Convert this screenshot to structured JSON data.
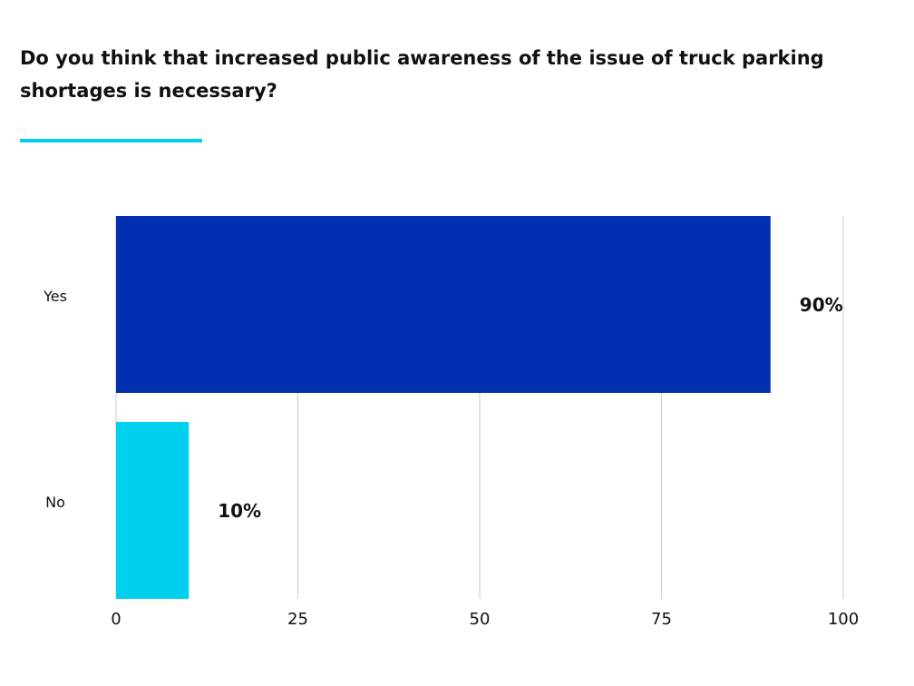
{
  "chart_data": {
    "type": "hbar",
    "title": "Do you think that increased public awareness of the issue of truck parking shortages is necessary?",
    "categories": [
      "Yes",
      "No"
    ],
    "values": [
      90,
      10
    ],
    "value_labels": [
      "90%",
      "10%"
    ],
    "colors": [
      "#0030b0",
      "#00cfee"
    ],
    "xlim": [
      0,
      100
    ],
    "xticks": [
      0,
      25,
      50,
      75,
      100
    ],
    "grid": true
  }
}
